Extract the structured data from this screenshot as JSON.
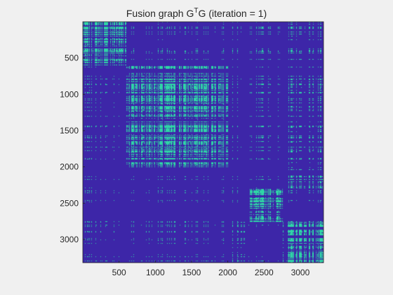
{
  "chart_data": {
    "type": "heatmap",
    "title": {
      "prefix": "Fusion graph G",
      "superscript": "T",
      "suffix": "G (iteration = 1)"
    },
    "xlabel": "",
    "ylabel": "",
    "xlim": [
      0,
      3320
    ],
    "ylim": [
      0,
      3320
    ],
    "y_direction": "reversed",
    "grid": false,
    "x_ticks": [
      500,
      1000,
      1500,
      2000,
      2500,
      3000
    ],
    "y_ticks": [
      500,
      1000,
      1500,
      2000,
      2500,
      3000
    ],
    "x_tick_labels": [
      "500",
      "1000",
      "1500",
      "2000",
      "2500",
      "3000"
    ],
    "y_tick_labels": [
      "500",
      "1000",
      "1500",
      "2000",
      "2500",
      "3000"
    ],
    "values": [
      0,
      1
    ],
    "colors": {
      "0": "#3d26a8",
      "1": "#2fd5a6"
    },
    "blocks": [
      {
        "from": 0,
        "to": 600,
        "dense": true
      },
      {
        "from": 600,
        "to": 2000,
        "dense": true
      },
      {
        "from": 2000,
        "to": 2300,
        "dense": false
      },
      {
        "from": 2300,
        "to": 2750,
        "dense": true
      },
      {
        "from": 2750,
        "to": 3320,
        "dense": true
      }
    ],
    "cross_block_links": [
      {
        "rows": [
          0,
          600
        ],
        "cols": [
          2750,
          3320
        ],
        "density": 0.3
      },
      {
        "rows": [
          2000,
          2300
        ],
        "cols": [
          2750,
          3320
        ],
        "density": 0.6
      },
      {
        "rows": [
          600,
          2000
        ],
        "cols": [
          2750,
          3320
        ],
        "density": 0.35
      }
    ],
    "note_density": 0.12
  }
}
